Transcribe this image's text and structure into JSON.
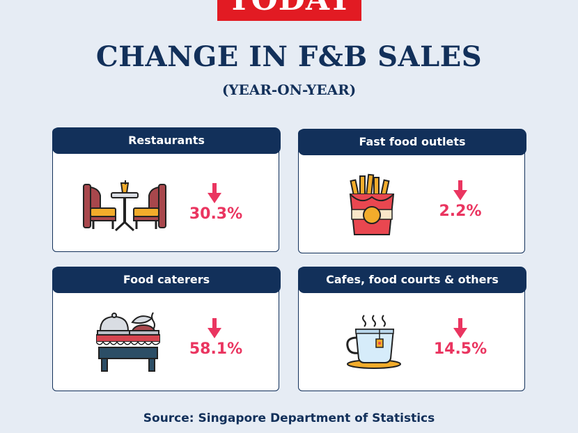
{
  "brand": {
    "logo_text": "TODAY",
    "logo_color": "#e21b23"
  },
  "header": {
    "title": "CHANGE IN F&B SALES",
    "subtitle": "(YEAR-ON-YEAR)"
  },
  "categories": [
    {
      "label": "Restaurants",
      "change": "30.3%",
      "direction": "down",
      "icon": "restaurant-table-icon"
    },
    {
      "label": "Fast food outlets",
      "change": "2.2%",
      "direction": "down",
      "icon": "french-fries-icon"
    },
    {
      "label": "Food caterers",
      "change": "58.1%",
      "direction": "down",
      "icon": "catering-buffet-icon"
    },
    {
      "label": "Cafes, food courts & others",
      "change": "14.5%",
      "direction": "down",
      "icon": "coffee-cup-icon"
    }
  ],
  "footer": {
    "source": "Source: Singapore Department of Statistics"
  },
  "colors": {
    "navy": "#12305a",
    "accent": "#ea3560",
    "background": "#e6ecf4"
  }
}
